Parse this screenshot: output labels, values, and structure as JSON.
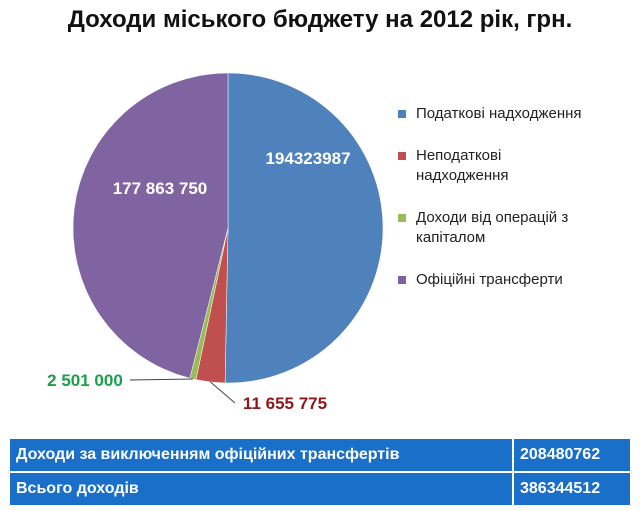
{
  "chart_data": {
    "type": "pie",
    "title": "Доходи міського бюджету на 2012 рік, грн.",
    "categories": [
      "Податкові надходження",
      "Неподаткові надходження",
      "Доходи від операцій з капіталом",
      "Офіційні трансферти"
    ],
    "values": [
      194323987,
      11655775,
      2501000,
      177863750
    ],
    "value_labels": [
      "194323987",
      "11 655 775",
      "2 501 000",
      "177 863 750"
    ],
    "colors": [
      "#4f81bd",
      "#c0504d",
      "#9bbb59",
      "#8064a2"
    ],
    "legend": "right"
  },
  "table": {
    "rows": [
      [
        "Доходи за виключенням офіційних трансфертів",
        "208480762"
      ],
      [
        "Всього доходів",
        "386344512"
      ]
    ]
  }
}
